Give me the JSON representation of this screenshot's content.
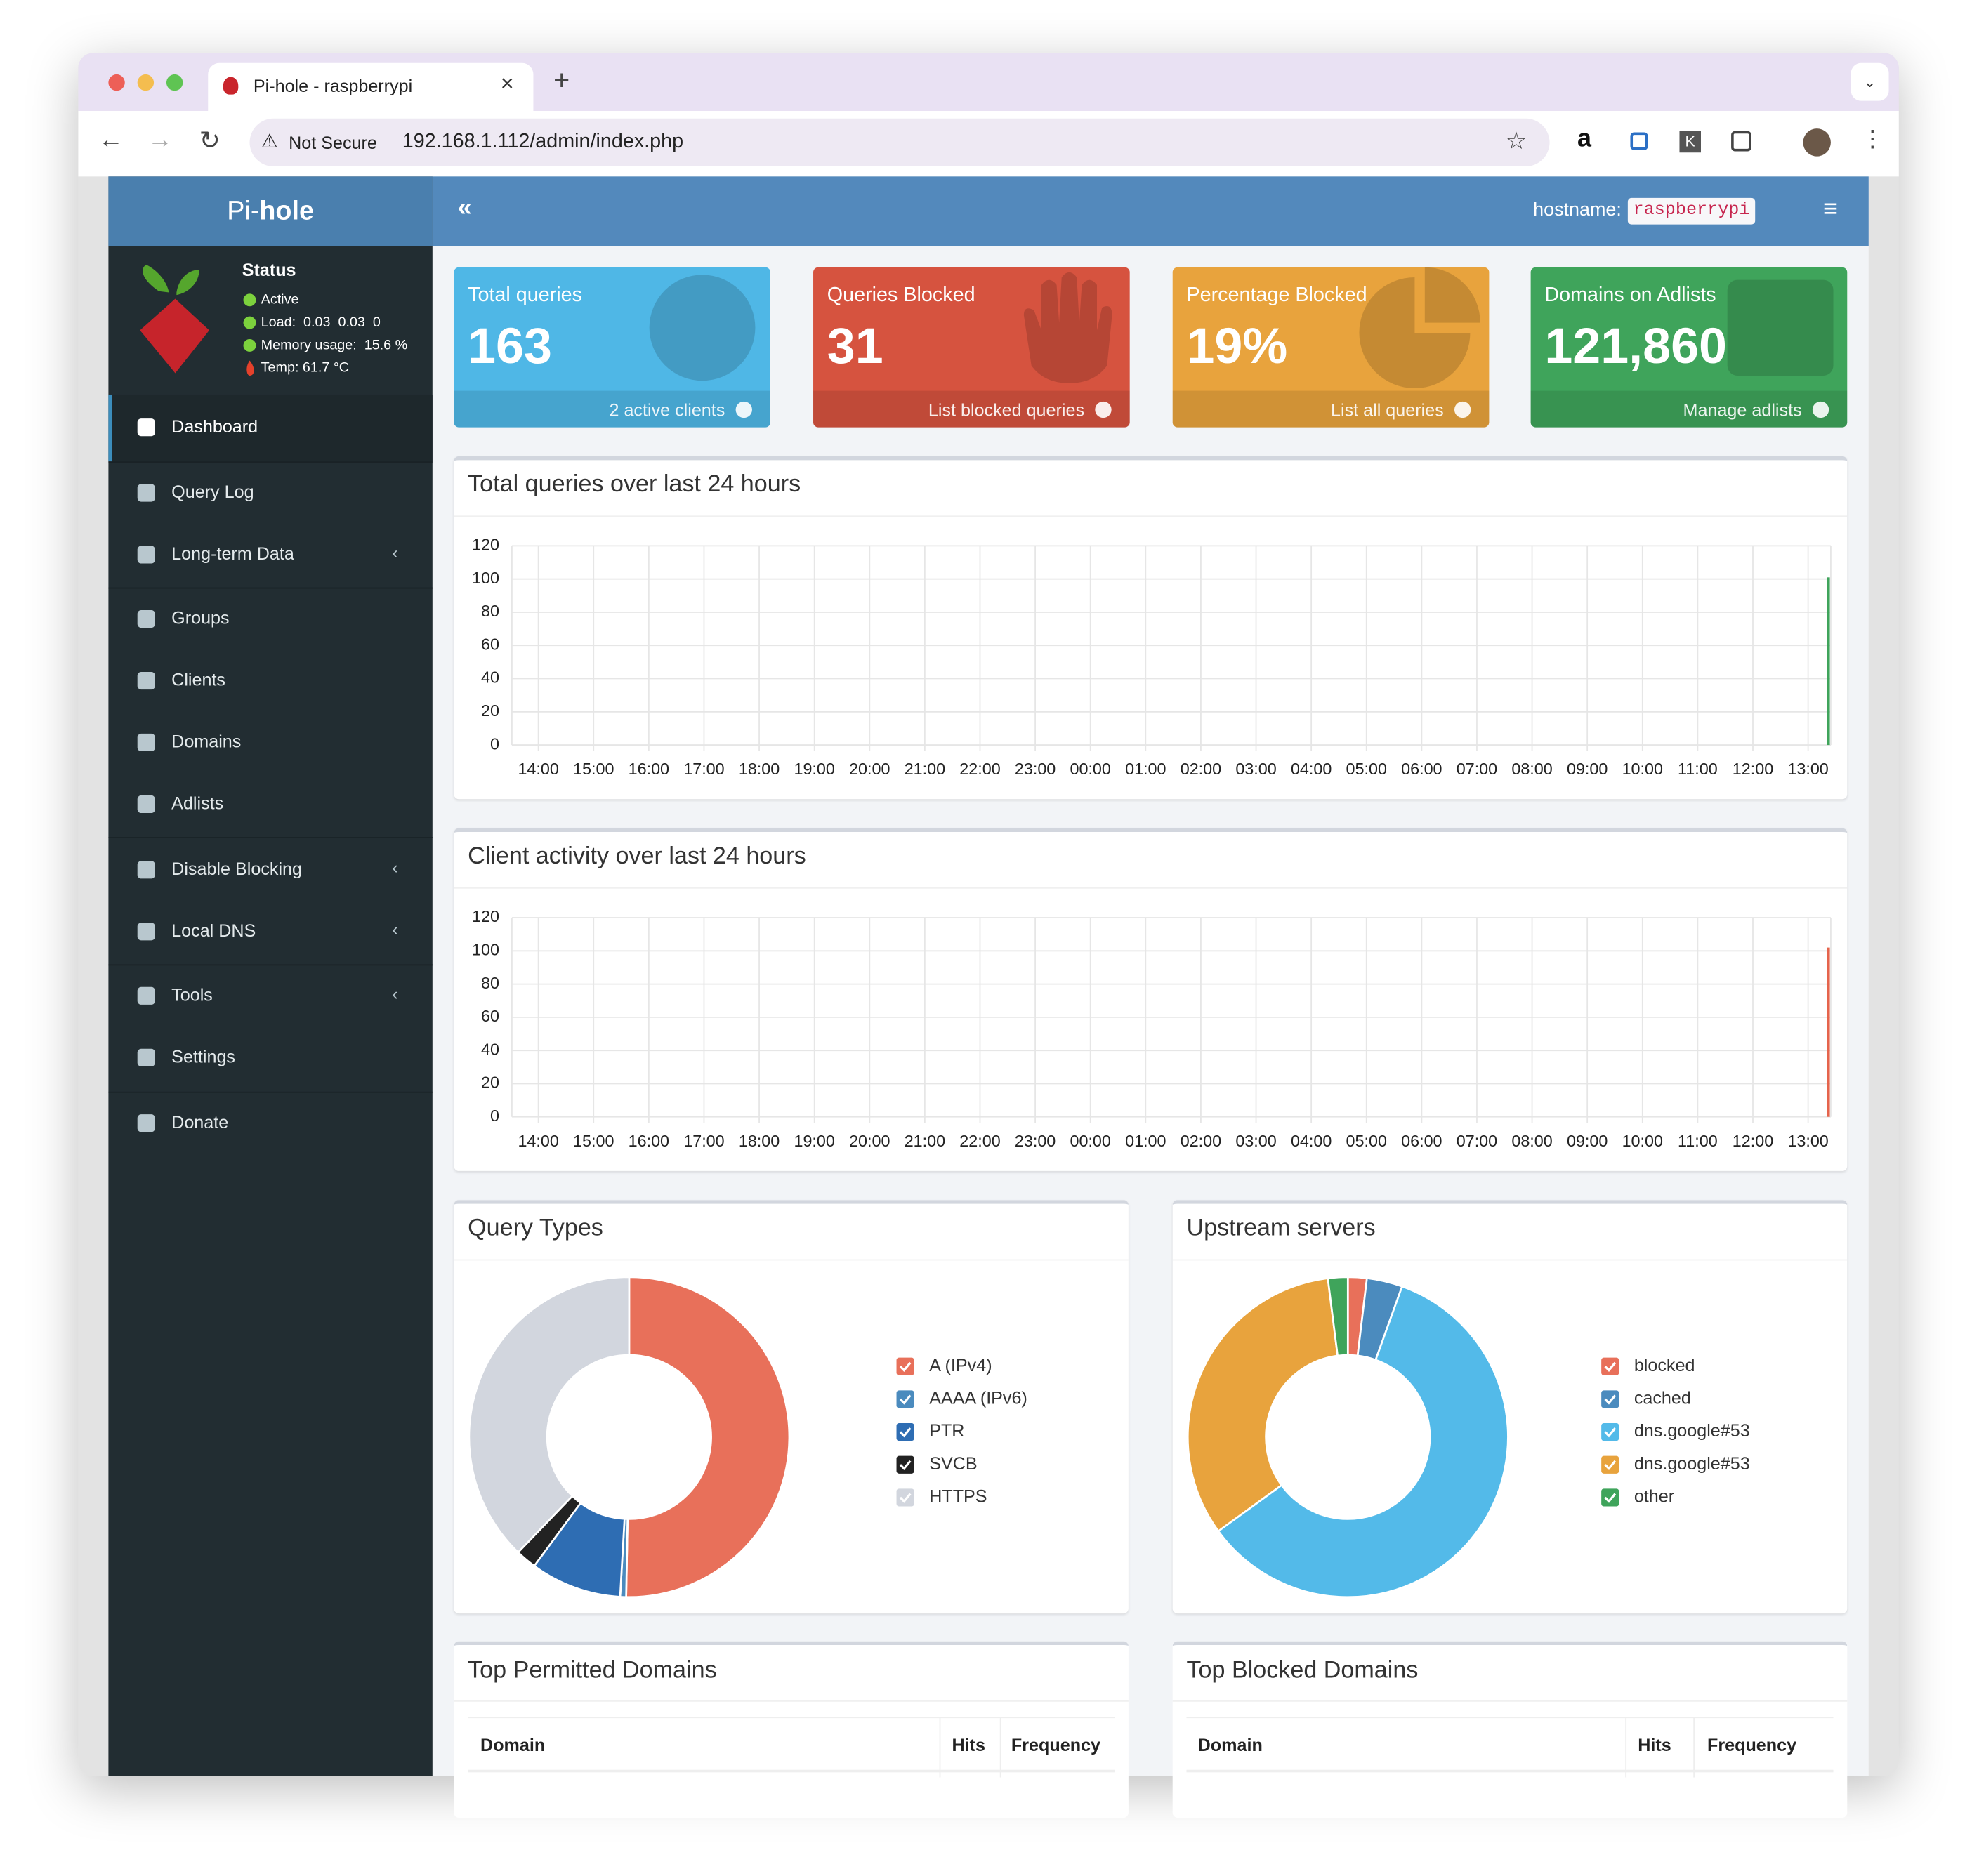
{
  "browser": {
    "tab_title": "Pi-hole - raspberrypi",
    "security": "Not Secure",
    "url": "192.168.1.112/admin/index.php"
  },
  "header": {
    "brand_prefix": "Pi-",
    "brand_bold": "hole",
    "hostname_label": "hostname:",
    "hostname": "raspberrypi"
  },
  "status": {
    "title": "Status",
    "active": "Active",
    "load": "Load:  0.03  0.03  0",
    "memory": "Memory usage:  15.6 %",
    "temp": "Temp: 61.7 °C"
  },
  "menu": [
    {
      "label": "Dashboard",
      "active": true
    },
    {
      "label": "Query Log"
    },
    {
      "label": "Long-term Data",
      "submenu": true
    },
    {
      "label": "Groups"
    },
    {
      "label": "Clients"
    },
    {
      "label": "Domains"
    },
    {
      "label": "Adlists"
    },
    {
      "label": "Disable Blocking",
      "submenu": true
    },
    {
      "label": "Local DNS",
      "submenu": true
    },
    {
      "label": "Tools",
      "submenu": true
    },
    {
      "label": "Settings"
    },
    {
      "label": "Donate"
    }
  ],
  "cards": [
    {
      "title": "Total queries",
      "value": "163",
      "footer": "2 active clients",
      "color": "#4fb7e6"
    },
    {
      "title": "Queries Blocked",
      "value": "31",
      "footer": "List blocked queries",
      "color": "#d6533f"
    },
    {
      "title": "Percentage Blocked",
      "value": "19%",
      "footer": "List all queries",
      "color": "#e8a33d"
    },
    {
      "title": "Domains on Adlists",
      "value": "121,860",
      "footer": "Manage adlists",
      "color": "#3fa45b"
    }
  ],
  "chart_data": [
    {
      "type": "bar",
      "title": "Total queries over last 24 hours",
      "categories": [
        "14:00",
        "15:00",
        "16:00",
        "17:00",
        "18:00",
        "19:00",
        "20:00",
        "21:00",
        "22:00",
        "23:00",
        "00:00",
        "01:00",
        "02:00",
        "03:00",
        "04:00",
        "05:00",
        "06:00",
        "07:00",
        "08:00",
        "09:00",
        "10:00",
        "11:00",
        "12:00",
        "13:00"
      ],
      "values": [
        0,
        0,
        0,
        0,
        0,
        0,
        0,
        0,
        0,
        0,
        0,
        0,
        0,
        0,
        0,
        0,
        0,
        0,
        0,
        0,
        0,
        0,
        0,
        101
      ],
      "color": "#3fa45b",
      "ylim": [
        0,
        120
      ],
      "yticks": [
        0,
        20,
        40,
        60,
        80,
        100,
        120
      ],
      "grid": true
    },
    {
      "type": "bar",
      "title": "Client activity over last 24 hours",
      "categories": [
        "14:00",
        "15:00",
        "16:00",
        "17:00",
        "18:00",
        "19:00",
        "20:00",
        "21:00",
        "22:00",
        "23:00",
        "00:00",
        "01:00",
        "02:00",
        "03:00",
        "04:00",
        "05:00",
        "06:00",
        "07:00",
        "08:00",
        "09:00",
        "10:00",
        "11:00",
        "12:00",
        "13:00"
      ],
      "values": [
        0,
        0,
        0,
        0,
        0,
        0,
        0,
        0,
        0,
        0,
        0,
        0,
        0,
        0,
        0,
        0,
        0,
        0,
        0,
        0,
        0,
        0,
        0,
        102
      ],
      "color": "#e5644c",
      "ylim": [
        0,
        120
      ],
      "yticks": [
        0,
        20,
        40,
        60,
        80,
        100,
        120
      ],
      "grid": true
    },
    {
      "type": "doughnut",
      "title": "Query Types",
      "categories": [
        "A (IPv4)",
        "AAAA (IPv6)",
        "PTR",
        "SVCB",
        "HTTPS"
      ],
      "values": [
        50.3,
        0.6,
        9.2,
        2.1,
        37.8
      ],
      "colors": [
        "#e8705a",
        "#4b8bbe",
        "#2e6db3",
        "#222222",
        "#d2d6de"
      ]
    },
    {
      "type": "doughnut",
      "title": "Upstream servers",
      "categories": [
        "blocked",
        "cached",
        "dns.google#53",
        "dns.google#53",
        "other"
      ],
      "values": [
        1.9,
        3.6,
        59.5,
        33,
        2
      ],
      "colors": [
        "#e8705a",
        "#4b8bbe",
        "#53bae9",
        "#e8a33d",
        "#3fa45b"
      ]
    }
  ],
  "tables": [
    {
      "title": "Top Permitted Domains",
      "columns": [
        "Domain",
        "Hits",
        "Frequency"
      ]
    },
    {
      "title": "Top Blocked Domains",
      "columns": [
        "Domain",
        "Hits",
        "Frequency"
      ]
    }
  ]
}
